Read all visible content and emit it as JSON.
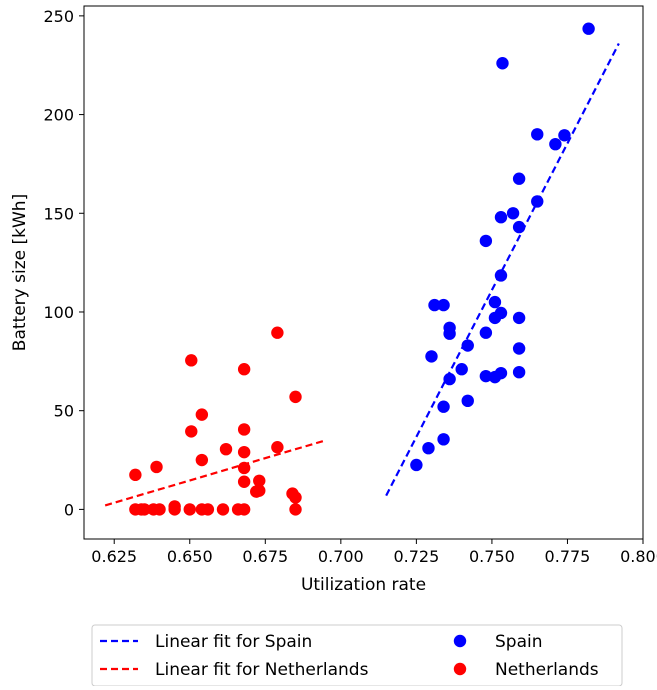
{
  "chart_data": {
    "type": "scatter",
    "title": "",
    "xlabel": "Utilization rate",
    "ylabel": "Battery size [kWh]",
    "xlim": [
      0.615,
      0.8
    ],
    "ylim": [
      -15,
      255
    ],
    "xticks": [
      0.625,
      0.65,
      0.675,
      0.7,
      0.725,
      0.75,
      0.775,
      0.8
    ],
    "xtick_labels": [
      "0.625",
      "0.650",
      "0.675",
      "0.700",
      "0.725",
      "0.750",
      "0.775",
      "0.800"
    ],
    "yticks": [
      0,
      50,
      100,
      150,
      200,
      250
    ],
    "ytick_labels": [
      "0",
      "50",
      "100",
      "150",
      "200",
      "250"
    ],
    "grid": false,
    "legend_position": "below plot",
    "series": [
      {
        "name": "Spain",
        "kind": "scatter",
        "color": "#0000ff",
        "points": [
          [
            0.725,
            22.5
          ],
          [
            0.729,
            31
          ],
          [
            0.731,
            103.5
          ],
          [
            0.73,
            77.5
          ],
          [
            0.734,
            35.5
          ],
          [
            0.734,
            52
          ],
          [
            0.734,
            103.5
          ],
          [
            0.736,
            92
          ],
          [
            0.736,
            89
          ],
          [
            0.736,
            66
          ],
          [
            0.74,
            71
          ],
          [
            0.742,
            83
          ],
          [
            0.742,
            55
          ],
          [
            0.748,
            136
          ],
          [
            0.748,
            89.5
          ],
          [
            0.748,
            67.5
          ],
          [
            0.751,
            105
          ],
          [
            0.751,
            97
          ],
          [
            0.751,
            67
          ],
          [
            0.753,
            99.5
          ],
          [
            0.753,
            148
          ],
          [
            0.753,
            118.5
          ],
          [
            0.753,
            69
          ],
          [
            0.757,
            150
          ],
          [
            0.759,
            167.5
          ],
          [
            0.759,
            143
          ],
          [
            0.759,
            97
          ],
          [
            0.759,
            81.5
          ],
          [
            0.759,
            69.5
          ],
          [
            0.765,
            190
          ],
          [
            0.765,
            156
          ],
          [
            0.771,
            185
          ],
          [
            0.774,
            189.5
          ],
          [
            0.782,
            243.5
          ],
          [
            0.7535,
            226
          ]
        ]
      },
      {
        "name": "Netherlands",
        "kind": "scatter",
        "color": "#ff0000",
        "points": [
          [
            0.632,
            17.5
          ],
          [
            0.632,
            0
          ],
          [
            0.634,
            0
          ],
          [
            0.635,
            0
          ],
          [
            0.638,
            0
          ],
          [
            0.64,
            0
          ],
          [
            0.639,
            21.5
          ],
          [
            0.645,
            0
          ],
          [
            0.645,
            1.5
          ],
          [
            0.65,
            0
          ],
          [
            0.6505,
            39.5
          ],
          [
            0.6505,
            75.5
          ],
          [
            0.654,
            48
          ],
          [
            0.654,
            25
          ],
          [
            0.654,
            0
          ],
          [
            0.656,
            0
          ],
          [
            0.661,
            0
          ],
          [
            0.662,
            30.5
          ],
          [
            0.666,
            0
          ],
          [
            0.668,
            71
          ],
          [
            0.668,
            40.5
          ],
          [
            0.668,
            29
          ],
          [
            0.668,
            21
          ],
          [
            0.668,
            14
          ],
          [
            0.668,
            0
          ],
          [
            0.672,
            9
          ],
          [
            0.673,
            9.5
          ],
          [
            0.673,
            14.5
          ],
          [
            0.679,
            89.5
          ],
          [
            0.679,
            31.5
          ],
          [
            0.684,
            8
          ],
          [
            0.685,
            6
          ],
          [
            0.685,
            57
          ],
          [
            0.685,
            0
          ]
        ]
      },
      {
        "name": "Linear fit for Spain",
        "kind": "line",
        "style": "dashed",
        "color": "#0000ff",
        "points": [
          [
            0.715,
            7
          ],
          [
            0.792,
            236
          ]
        ]
      },
      {
        "name": "Linear fit for Netherlands",
        "kind": "line",
        "style": "dashed",
        "color": "#ff0000",
        "points": [
          [
            0.622,
            2
          ],
          [
            0.695,
            35
          ]
        ]
      }
    ],
    "legend": {
      "entries": [
        {
          "label": "Linear fit for Spain",
          "marker": "dashed-line",
          "color": "#0000ff"
        },
        {
          "label": "Spain",
          "marker": "dot",
          "color": "#0000ff"
        },
        {
          "label": "Linear fit for Netherlands",
          "marker": "dashed-line",
          "color": "#ff0000"
        },
        {
          "label": "Netherlands",
          "marker": "dot",
          "color": "#ff0000"
        }
      ]
    }
  }
}
